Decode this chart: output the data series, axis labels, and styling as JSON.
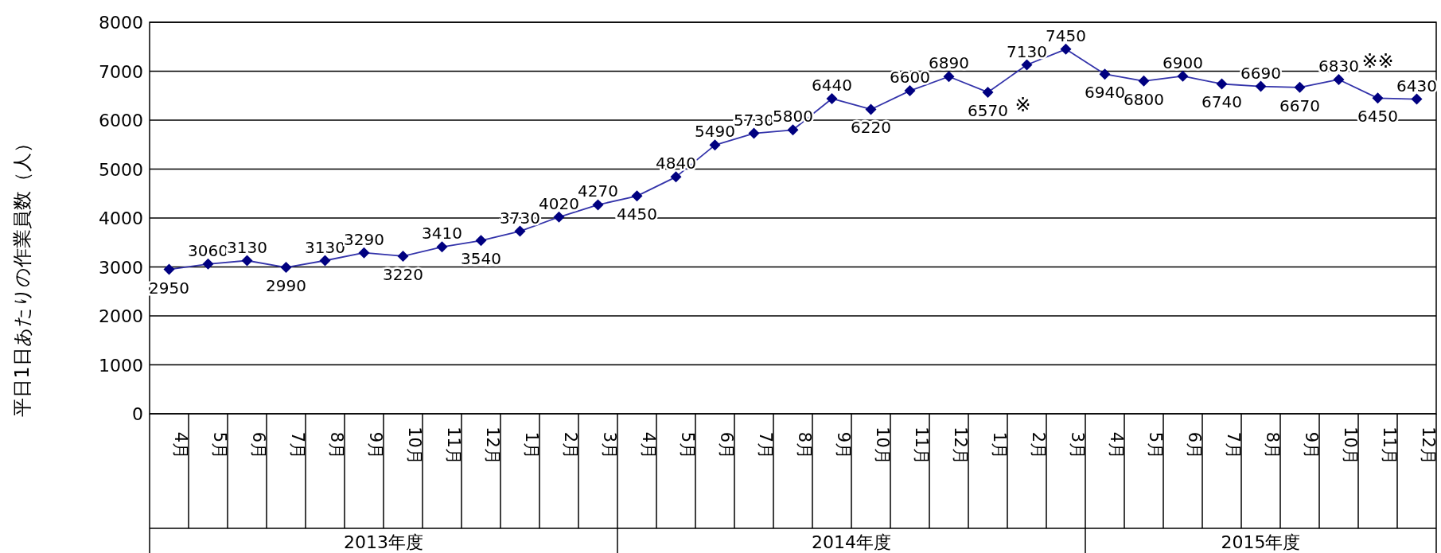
{
  "chart_data": {
    "type": "line",
    "ylabel": "平日1日あたりの作業員数（人）",
    "categories": [
      "4月",
      "5月",
      "6月",
      "7月",
      "8月",
      "9月",
      "10月",
      "11月",
      "12月",
      "1月",
      "2月",
      "3月",
      "4月",
      "5月",
      "6月",
      "7月",
      "8月",
      "9月",
      "10月",
      "11月",
      "12月",
      "1月",
      "2月",
      "3月",
      "4月",
      "5月",
      "6月",
      "7月",
      "8月",
      "9月",
      "10月",
      "11月",
      "12月"
    ],
    "series": [
      {
        "color": "#000080",
        "values": [
          2950,
          3060,
          3130,
          2990,
          3130,
          3290,
          3220,
          3410,
          3540,
          3730,
          4020,
          4270,
          4450,
          4840,
          5490,
          5730,
          5800,
          6440,
          6220,
          6600,
          6890,
          6570,
          7130,
          7450,
          6940,
          6800,
          6900,
          6740,
          6690,
          6670,
          6830,
          6450,
          6430
        ]
      }
    ],
    "ylim": [
      0,
      8000
    ],
    "yticks": [
      0,
      1000,
      2000,
      3000,
      4000,
      5000,
      6000,
      7000,
      8000
    ],
    "grid": "y",
    "marker": "diamond",
    "line_style": "solid",
    "data_labels": true,
    "annotations": [
      "2013年度",
      "2014年度",
      "2015年度",
      "※",
      "※※"
    ]
  }
}
